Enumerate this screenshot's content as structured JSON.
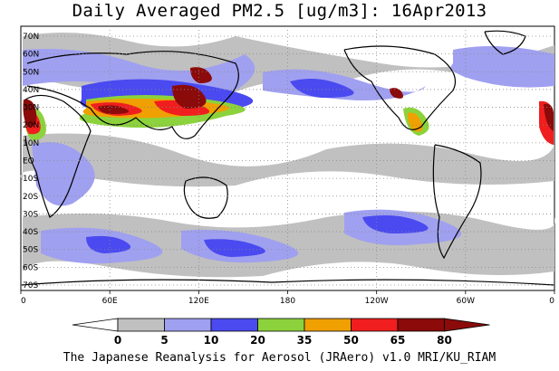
{
  "title": "Daily Averaged PM2.5 [ug/m3]: 16Apr2013",
  "credit": "The Japanese Reanalysis for Aerosol (JRAero) v1.0 MRI/KU_RIAM",
  "map": {
    "lat_labels": [
      "70N",
      "60N",
      "50N",
      "40N",
      "30N",
      "20N",
      "10N",
      "EQ",
      "10S",
      "20S",
      "30S",
      "40S",
      "50S",
      "60S",
      "70S"
    ],
    "lon_labels": [
      "0",
      "60E",
      "120E",
      "180",
      "120W",
      "60W",
      "0"
    ]
  },
  "legend": {
    "breaks": [
      "0",
      "5",
      "10",
      "20",
      "35",
      "50",
      "65",
      "80"
    ],
    "colors": [
      "#ffffff",
      "#c0c0c0",
      "#a0a0f0",
      "#4a4af0",
      "#8cd23c",
      "#f0a000",
      "#f01e1e",
      "#8b0a0a"
    ]
  },
  "palette": {
    "grey": "#c0c0c0",
    "light_blue": "#a0a0f0",
    "blue": "#4a4af0",
    "green": "#8cd23c",
    "orange": "#f0a000",
    "red": "#f01e1e",
    "dark_red": "#8b0a0a"
  }
}
